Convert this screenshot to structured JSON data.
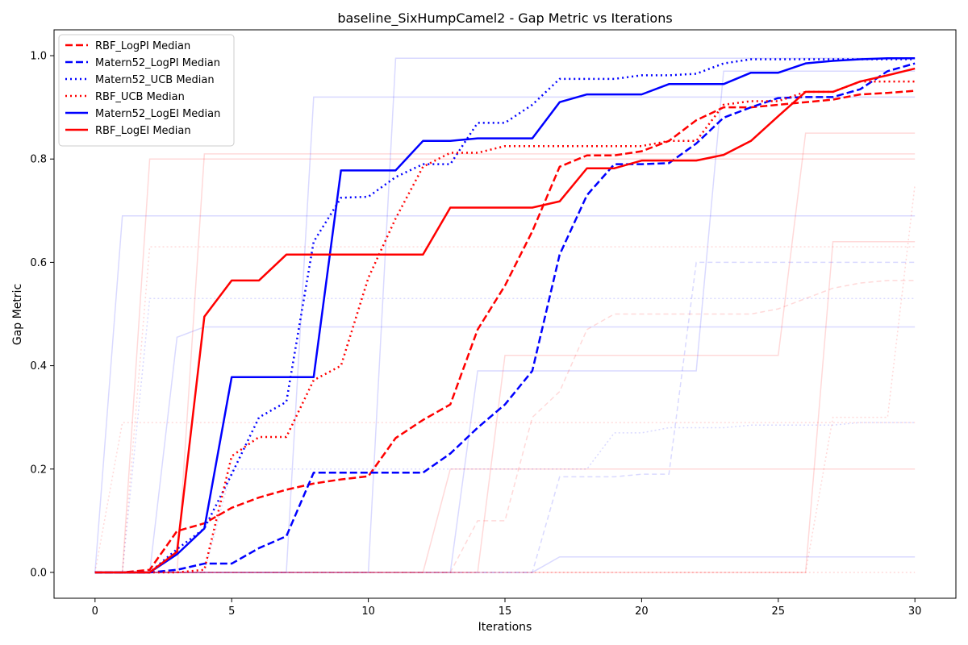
{
  "chart_data": {
    "type": "line",
    "title": "baseline_SixHumpCamel2 - Gap Metric vs Iterations",
    "xlabel": "Iterations",
    "ylabel": "Gap Metric",
    "xlim": [
      -1.5,
      31.5
    ],
    "ylim": [
      -0.05,
      1.05
    ],
    "xticks": [
      0,
      5,
      10,
      15,
      20,
      25,
      30
    ],
    "yticks": [
      0.0,
      0.2,
      0.4,
      0.6,
      0.8,
      1.0
    ],
    "xtick_labels": [
      "0",
      "5",
      "10",
      "15",
      "20",
      "25",
      "30"
    ],
    "ytick_labels": [
      "0.0",
      "0.2",
      "0.4",
      "0.6",
      "0.8",
      "1.0"
    ],
    "grid": false,
    "legend_position": "top-left",
    "x": [
      0,
      1,
      2,
      3,
      4,
      5,
      6,
      7,
      8,
      9,
      10,
      11,
      12,
      13,
      14,
      15,
      16,
      17,
      18,
      19,
      20,
      21,
      22,
      23,
      24,
      25,
      26,
      27,
      28,
      29,
      30
    ],
    "series": [
      {
        "name": "RBF_LogPI Median",
        "color": "#ff0000",
        "style": "dashed",
        "values": [
          0,
          0,
          0.005,
          0.08,
          0.095,
          0.125,
          0.145,
          0.16,
          0.172,
          0.18,
          0.186,
          0.26,
          0.295,
          0.325,
          0.47,
          0.555,
          0.66,
          0.785,
          0.807,
          0.807,
          0.815,
          0.835,
          0.875,
          0.9,
          0.9,
          0.905,
          0.91,
          0.915,
          0.925,
          0.928,
          0.932
        ]
      },
      {
        "name": "Matern52_LogPI Median",
        "color": "#0000ff",
        "style": "dashed",
        "values": [
          0,
          0,
          0,
          0.005,
          0.017,
          0.017,
          0.047,
          0.07,
          0.193,
          0.193,
          0.193,
          0.193,
          0.193,
          0.23,
          0.28,
          0.325,
          0.39,
          0.615,
          0.73,
          0.79,
          0.79,
          0.792,
          0.83,
          0.88,
          0.9,
          0.918,
          0.92,
          0.92,
          0.935,
          0.97,
          0.985
        ]
      },
      {
        "name": "Matern52_UCB Median",
        "color": "#0000ff",
        "style": "dotted",
        "values": [
          0,
          0,
          0,
          0.045,
          0.085,
          0.19,
          0.3,
          0.33,
          0.64,
          0.725,
          0.727,
          0.765,
          0.79,
          0.79,
          0.87,
          0.87,
          0.905,
          0.955,
          0.955,
          0.955,
          0.962,
          0.962,
          0.965,
          0.985,
          0.993,
          0.993,
          0.993,
          0.993,
          0.993,
          0.993,
          0.993
        ]
      },
      {
        "name": "RBF_UCB Median",
        "color": "#ff0000",
        "style": "dotted",
        "values": [
          0,
          0,
          0,
          0,
          0.005,
          0.225,
          0.262,
          0.262,
          0.372,
          0.4,
          0.57,
          0.685,
          0.785,
          0.812,
          0.812,
          0.825,
          0.825,
          0.825,
          0.825,
          0.825,
          0.825,
          0.835,
          0.835,
          0.905,
          0.912,
          0.912,
          0.93,
          0.93,
          0.95,
          0.95,
          0.95
        ]
      },
      {
        "name": "Matern52_LogEI Median",
        "color": "#0000ff",
        "style": "solid",
        "values": [
          0,
          0,
          0,
          0.035,
          0.085,
          0.378,
          0.378,
          0.378,
          0.378,
          0.778,
          0.778,
          0.778,
          0.835,
          0.835,
          0.84,
          0.84,
          0.84,
          0.91,
          0.925,
          0.925,
          0.925,
          0.945,
          0.945,
          0.945,
          0.967,
          0.967,
          0.985,
          0.99,
          0.993,
          0.995,
          0.995
        ]
      },
      {
        "name": "RBF_LogEI Median",
        "color": "#ff0000",
        "style": "solid",
        "values": [
          0,
          0,
          0,
          0.04,
          0.495,
          0.565,
          0.565,
          0.615,
          0.615,
          0.615,
          0.615,
          0.615,
          0.615,
          0.706,
          0.706,
          0.706,
          0.706,
          0.718,
          0.782,
          0.782,
          0.797,
          0.797,
          0.797,
          0.808,
          0.835,
          0.883,
          0.93,
          0.93,
          0.95,
          0.962,
          0.975
        ]
      }
    ],
    "individual_runs": [
      {
        "color": "#0000ff",
        "style": "solid",
        "values": [
          0,
          0.69,
          0.69,
          0.69,
          0.69,
          0.69,
          0.69,
          0.69,
          0.69,
          0.69,
          0.69,
          0.69,
          0.69,
          0.69,
          0.69,
          0.69,
          0.69,
          0.69,
          0.69,
          0.69,
          0.69,
          0.69,
          0.69,
          0.69,
          0.69,
          0.69,
          0.69,
          0.69,
          0.69,
          0.69,
          0.69
        ]
      },
      {
        "color": "#0000ff",
        "style": "solid",
        "values": [
          0,
          0,
          0,
          0,
          0,
          0,
          0,
          0,
          0.92,
          0.92,
          0.92,
          0.92,
          0.92,
          0.92,
          0.92,
          0.92,
          0.92,
          0.92,
          0.92,
          0.92,
          0.92,
          0.92,
          0.92,
          0.92,
          0.92,
          0.92,
          0.92,
          0.92,
          0.92,
          0.92,
          0.92
        ]
      },
      {
        "color": "#0000ff",
        "style": "solid",
        "values": [
          0,
          0,
          0,
          0,
          0,
          0,
          0,
          0,
          0,
          0,
          0,
          0.995,
          0.995,
          0.995,
          0.995,
          0.995,
          0.995,
          0.995,
          0.995,
          0.995,
          0.995,
          0.995,
          0.995,
          0.995,
          0.995,
          0.995,
          0.995,
          0.995,
          0.995,
          0.995,
          0.995
        ]
      },
      {
        "color": "#0000ff",
        "style": "solid",
        "values": [
          0,
          0,
          0,
          0.455,
          0.475,
          0.475,
          0.475,
          0.475,
          0.475,
          0.475,
          0.475,
          0.475,
          0.475,
          0.475,
          0.475,
          0.475,
          0.475,
          0.475,
          0.475,
          0.475,
          0.475,
          0.475,
          0.475,
          0.475,
          0.475,
          0.475,
          0.475,
          0.475,
          0.475,
          0.475,
          0.475
        ]
      },
      {
        "color": "#0000ff",
        "style": "solid",
        "values": [
          0,
          0,
          0,
          0,
          0,
          0,
          0,
          0,
          0,
          0,
          0,
          0,
          0,
          0,
          0.39,
          0.39,
          0.39,
          0.39,
          0.39,
          0.39,
          0.39,
          0.39,
          0.39,
          0.97,
          0.97,
          0.97,
          0.97,
          0.97,
          0.97,
          0.97,
          0.97
        ]
      },
      {
        "color": "#0000ff",
        "style": "solid",
        "values": [
          0,
          0,
          0,
          0,
          0,
          0,
          0,
          0,
          0,
          0,
          0,
          0,
          0,
          0,
          0,
          0,
          0,
          0.03,
          0.03,
          0.03,
          0.03,
          0.03,
          0.03,
          0.03,
          0.03,
          0.03,
          0.03,
          0.03,
          0.03,
          0.03,
          0.03
        ]
      },
      {
        "color": "#0000ff",
        "style": "dotted",
        "values": [
          0,
          0,
          0.53,
          0.53,
          0.53,
          0.53,
          0.53,
          0.53,
          0.53,
          0.53,
          0.53,
          0.53,
          0.53,
          0.53,
          0.53,
          0.53,
          0.53,
          0.53,
          0.53,
          0.53,
          0.53,
          0.53,
          0.53,
          0.53,
          0.53,
          0.53,
          0.53,
          0.53,
          0.53,
          0.53,
          0.53
        ]
      },
      {
        "color": "#0000ff",
        "style": "dotted",
        "values": [
          0,
          0,
          0,
          0,
          0,
          0.2,
          0.2,
          0.2,
          0.2,
          0.2,
          0.2,
          0.2,
          0.2,
          0.2,
          0.2,
          0.2,
          0.2,
          0.2,
          0.2,
          0.27,
          0.27,
          0.28,
          0.28,
          0.28,
          0.285,
          0.285,
          0.285,
          0.285,
          0.29,
          0.29,
          0.29
        ]
      },
      {
        "color": "#0000ff",
        "style": "dashed",
        "values": [
          0,
          0,
          0,
          0,
          0,
          0,
          0,
          0,
          0,
          0,
          0,
          0,
          0,
          0,
          0,
          0,
          0,
          0.185,
          0.185,
          0.185,
          0.19,
          0.19,
          0.6,
          0.6,
          0.6,
          0.6,
          0.6,
          0.6,
          0.6,
          0.6,
          0.6
        ]
      },
      {
        "color": "#ff0000",
        "style": "solid",
        "values": [
          0,
          0,
          0,
          0,
          0,
          0,
          0,
          0,
          0,
          0,
          0,
          0,
          0,
          0,
          0,
          0,
          0,
          0,
          0,
          0,
          0,
          0,
          0,
          0,
          0,
          0,
          0,
          0.64,
          0.64,
          0.64,
          0.64
        ]
      },
      {
        "color": "#ff0000",
        "style": "solid",
        "values": [
          0,
          0,
          0,
          0,
          0,
          0,
          0,
          0,
          0,
          0,
          0,
          0,
          0,
          0,
          0,
          0.42,
          0.42,
          0.42,
          0.42,
          0.42,
          0.42,
          0.42,
          0.42,
          0.42,
          0.42,
          0.42,
          0.85,
          0.85,
          0.85,
          0.85,
          0.85
        ]
      },
      {
        "color": "#ff0000",
        "style": "solid",
        "values": [
          0,
          0,
          0.8,
          0.8,
          0.8,
          0.8,
          0.8,
          0.8,
          0.8,
          0.8,
          0.8,
          0.8,
          0.8,
          0.8,
          0.8,
          0.8,
          0.8,
          0.8,
          0.8,
          0.8,
          0.8,
          0.8,
          0.8,
          0.8,
          0.8,
          0.8,
          0.8,
          0.8,
          0.8,
          0.8,
          0.8
        ]
      },
      {
        "color": "#ff0000",
        "style": "solid",
        "values": [
          0,
          0,
          0,
          0,
          0.81,
          0.81,
          0.81,
          0.81,
          0.81,
          0.81,
          0.81,
          0.81,
          0.81,
          0.81,
          0.81,
          0.81,
          0.81,
          0.81,
          0.81,
          0.81,
          0.81,
          0.81,
          0.81,
          0.81,
          0.81,
          0.81,
          0.81,
          0.81,
          0.81,
          0.81,
          0.81
        ]
      },
      {
        "color": "#ff0000",
        "style": "solid",
        "values": [
          0,
          0,
          0,
          0,
          0,
          0,
          0,
          0,
          0,
          0,
          0,
          0,
          0,
          0.2,
          0.2,
          0.2,
          0.2,
          0.2,
          0.2,
          0.2,
          0.2,
          0.2,
          0.2,
          0.2,
          0.2,
          0.2,
          0.2,
          0.2,
          0.2,
          0.2,
          0.2
        ]
      },
      {
        "color": "#ff0000",
        "style": "dashed",
        "values": [
          0,
          0,
          0,
          0,
          0,
          0,
          0,
          0,
          0,
          0,
          0,
          0,
          0,
          0,
          0.1,
          0.1,
          0.3,
          0.35,
          0.47,
          0.5,
          0.5,
          0.5,
          0.5,
          0.5,
          0.5,
          0.51,
          0.53,
          0.55,
          0.56,
          0.565,
          0.565
        ]
      },
      {
        "color": "#ff0000",
        "style": "dotted",
        "values": [
          0,
          0,
          0,
          0,
          0,
          0,
          0,
          0,
          0,
          0,
          0,
          0,
          0,
          0,
          0,
          0,
          0,
          0,
          0,
          0,
          0,
          0,
          0,
          0,
          0,
          0,
          0,
          0.3,
          0.3,
          0.3,
          0.75
        ]
      },
      {
        "color": "#ff0000",
        "style": "dotted",
        "values": [
          0,
          0.29,
          0.29,
          0.29,
          0.29,
          0.29,
          0.29,
          0.29,
          0.29,
          0.29,
          0.29,
          0.29,
          0.29,
          0.29,
          0.29,
          0.29,
          0.29,
          0.29,
          0.29,
          0.29,
          0.29,
          0.29,
          0.29,
          0.29,
          0.29,
          0.29,
          0.29,
          0.29,
          0.29,
          0.29,
          0.29
        ]
      },
      {
        "color": "#ff0000",
        "style": "dotted",
        "values": [
          0,
          0,
          0.63,
          0.63,
          0.63,
          0.63,
          0.63,
          0.63,
          0.63,
          0.63,
          0.63,
          0.63,
          0.63,
          0.63,
          0.63,
          0.63,
          0.63,
          0.63,
          0.63,
          0.63,
          0.63,
          0.63,
          0.63,
          0.63,
          0.63,
          0.63,
          0.63,
          0.63,
          0.63,
          0.63,
          0.63
        ]
      },
      {
        "color": "#ff0000",
        "style": "dotted",
        "values": [
          0,
          0,
          0,
          0,
          0,
          0,
          0,
          0,
          0,
          0,
          0,
          0,
          0,
          0,
          0,
          0,
          0,
          0,
          0,
          0,
          0,
          0,
          0,
          0,
          0,
          0,
          0,
          0,
          0,
          0,
          0
        ]
      }
    ]
  }
}
